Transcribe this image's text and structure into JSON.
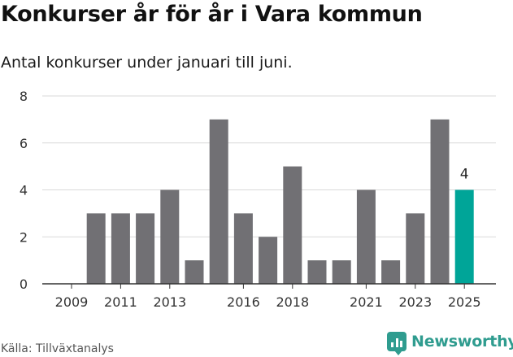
{
  "header": {
    "title": "Konkurser år för år i Vara kommun",
    "subtitle": "Antal konkurser under januari till juni."
  },
  "footer": {
    "source": "Källa: Tillväxtanalys",
    "brand": "Newsworthy",
    "brand_icon": "newsworthy-logo-icon"
  },
  "colors": {
    "bar": "#717074",
    "highlight": "#00a598",
    "grid": "#d9d9d9",
    "axis": "#333333"
  },
  "chart_data": {
    "type": "bar",
    "title": "Konkurser år för år i Vara kommun",
    "subtitle": "Antal konkurser under januari till juni.",
    "xlabel": "",
    "ylabel": "",
    "categories": [
      "2009",
      "2010",
      "2011",
      "2012",
      "2013",
      "2014",
      "2015",
      "2016",
      "2017",
      "2018",
      "2019",
      "2020",
      "2021",
      "2022",
      "2023",
      "2024",
      "2025"
    ],
    "values": [
      0,
      3,
      3,
      3,
      4,
      1,
      7,
      3,
      2,
      5,
      1,
      1,
      4,
      1,
      3,
      7,
      4
    ],
    "x_tick_labels": [
      "2009",
      "2011",
      "2013",
      "2016",
      "2018",
      "2021",
      "2023",
      "2025"
    ],
    "y_ticks": [
      0,
      2,
      4,
      6,
      8
    ],
    "ylim": [
      0,
      8
    ],
    "grid": true,
    "highlight_category": "2025",
    "data_labels": [
      {
        "category": "2025",
        "text": "4"
      }
    ]
  }
}
